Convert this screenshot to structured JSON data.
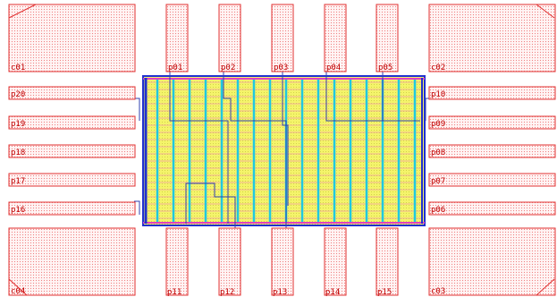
{
  "corner_pads": [
    "c01",
    "c02",
    "c03",
    "c04"
  ],
  "top_pads": [
    "p01",
    "p02",
    "p03",
    "p04",
    "p05"
  ],
  "right_pads": [
    "p10",
    "p09",
    "p08",
    "p07",
    "p06"
  ],
  "bottom_pads": [
    "p11",
    "p12",
    "p13",
    "p14",
    "p15"
  ],
  "left_pads": [
    "p20",
    "p19",
    "p18",
    "p17",
    "p16"
  ]
}
